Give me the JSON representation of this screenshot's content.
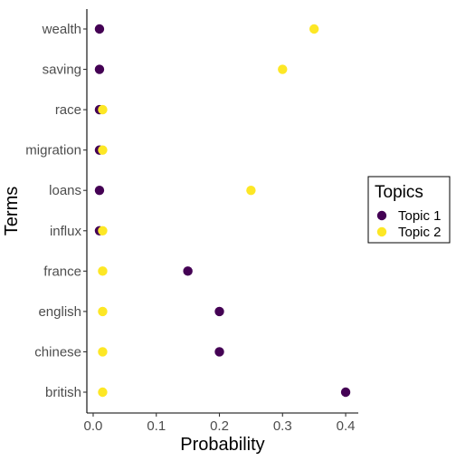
{
  "chart_data": {
    "type": "scatter",
    "xlabel": "Probability",
    "ylabel": "Terms",
    "xlim": [
      -0.01,
      0.42
    ],
    "xticks": [
      0.0,
      0.1,
      0.2,
      0.3,
      0.4
    ],
    "xtick_labels": [
      "0.0",
      "0.1",
      "0.2",
      "0.3",
      "0.4"
    ],
    "categories": [
      "wealth",
      "saving",
      "race",
      "migration",
      "loans",
      "influx",
      "france",
      "english",
      "chinese",
      "british"
    ],
    "grid": false,
    "legend": {
      "title": "Topics",
      "placement": "right"
    },
    "series": [
      {
        "name": "Topic 1",
        "color": "#440154",
        "values": [
          0.01,
          0.01,
          0.01,
          0.01,
          0.01,
          0.01,
          0.15,
          0.2,
          0.2,
          0.4
        ]
      },
      {
        "name": "Topic 2",
        "color": "#FDE725",
        "values": [
          0.35,
          0.3,
          0.015,
          0.015,
          0.25,
          0.015,
          0.015,
          0.015,
          0.015,
          0.015
        ]
      }
    ]
  }
}
